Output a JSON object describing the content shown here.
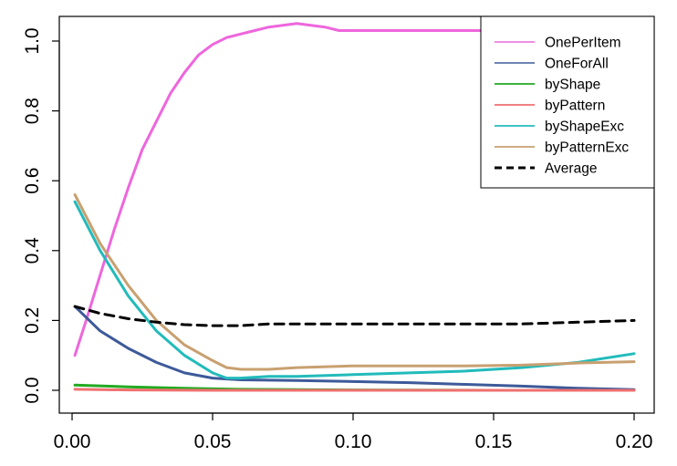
{
  "chart_data": {
    "type": "line",
    "title": "",
    "xlabel": "",
    "ylabel": "",
    "xlim": [
      0.0,
      0.2
    ],
    "ylim": [
      0.0,
      1.0
    ],
    "x_ticks": [
      "0.00",
      "0.05",
      "0.10",
      "0.15",
      "0.20"
    ],
    "y_ticks": [
      "0.0",
      "0.2",
      "0.4",
      "0.6",
      "0.8",
      "1.0"
    ],
    "grid": false,
    "legend_position": "top-right",
    "series": [
      {
        "name": "OnePerItem",
        "color": "#ee66dd",
        "dashed": false,
        "x": [
          0.001,
          0.005,
          0.01,
          0.015,
          0.02,
          0.025,
          0.03,
          0.035,
          0.04,
          0.045,
          0.05,
          0.055,
          0.06,
          0.065,
          0.07,
          0.075,
          0.08,
          0.085,
          0.09,
          0.095,
          0.1,
          0.12,
          0.145,
          0.15
        ],
        "y": [
          0.1,
          0.2,
          0.33,
          0.46,
          0.58,
          0.69,
          0.77,
          0.85,
          0.91,
          0.96,
          0.99,
          1.01,
          1.02,
          1.03,
          1.04,
          1.045,
          1.05,
          1.045,
          1.04,
          1.03,
          1.03,
          1.03,
          1.03,
          1.03
        ]
      },
      {
        "name": "OneForAll",
        "color": "#3d5a99",
        "dashed": false,
        "x": [
          0.001,
          0.01,
          0.02,
          0.03,
          0.04,
          0.05,
          0.06,
          0.08,
          0.1,
          0.12,
          0.14,
          0.16,
          0.18,
          0.2
        ],
        "y": [
          0.24,
          0.17,
          0.12,
          0.08,
          0.05,
          0.035,
          0.03,
          0.028,
          0.025,
          0.022,
          0.017,
          0.012,
          0.006,
          0.002
        ]
      },
      {
        "name": "byShape",
        "color": "#22aa22",
        "dashed": false,
        "x": [
          0.001,
          0.02,
          0.04,
          0.06,
          0.1,
          0.15,
          0.2
        ],
        "y": [
          0.015,
          0.01,
          0.006,
          0.003,
          0.001,
          0.0,
          0.0
        ]
      },
      {
        "name": "byPattern",
        "color": "#f07070",
        "dashed": false,
        "x": [
          0.001,
          0.02,
          0.05,
          0.1,
          0.15,
          0.2
        ],
        "y": [
          0.003,
          0.001,
          0.0,
          0.0,
          0.0,
          0.0
        ]
      },
      {
        "name": "byShapeExc",
        "color": "#22bbbb",
        "dashed": false,
        "x": [
          0.001,
          0.01,
          0.02,
          0.03,
          0.04,
          0.05,
          0.055,
          0.06,
          0.07,
          0.08,
          0.1,
          0.12,
          0.14,
          0.16,
          0.18,
          0.2
        ],
        "y": [
          0.54,
          0.4,
          0.27,
          0.17,
          0.1,
          0.05,
          0.035,
          0.035,
          0.04,
          0.04,
          0.045,
          0.05,
          0.055,
          0.065,
          0.08,
          0.105
        ]
      },
      {
        "name": "byPatternExc",
        "color": "#c8a070",
        "dashed": false,
        "x": [
          0.001,
          0.01,
          0.02,
          0.03,
          0.04,
          0.05,
          0.055,
          0.06,
          0.07,
          0.08,
          0.1,
          0.12,
          0.14,
          0.16,
          0.18,
          0.2
        ],
        "y": [
          0.56,
          0.42,
          0.3,
          0.2,
          0.13,
          0.085,
          0.065,
          0.06,
          0.06,
          0.065,
          0.07,
          0.07,
          0.07,
          0.072,
          0.078,
          0.082
        ]
      },
      {
        "name": "Average",
        "color": "#000000",
        "dashed": true,
        "x": [
          0.001,
          0.01,
          0.02,
          0.03,
          0.04,
          0.05,
          0.06,
          0.07,
          0.08,
          0.1,
          0.12,
          0.14,
          0.16,
          0.18,
          0.2
        ],
        "y": [
          0.24,
          0.22,
          0.205,
          0.195,
          0.188,
          0.185,
          0.185,
          0.19,
          0.19,
          0.19,
          0.19,
          0.19,
          0.19,
          0.195,
          0.2
        ]
      }
    ]
  }
}
